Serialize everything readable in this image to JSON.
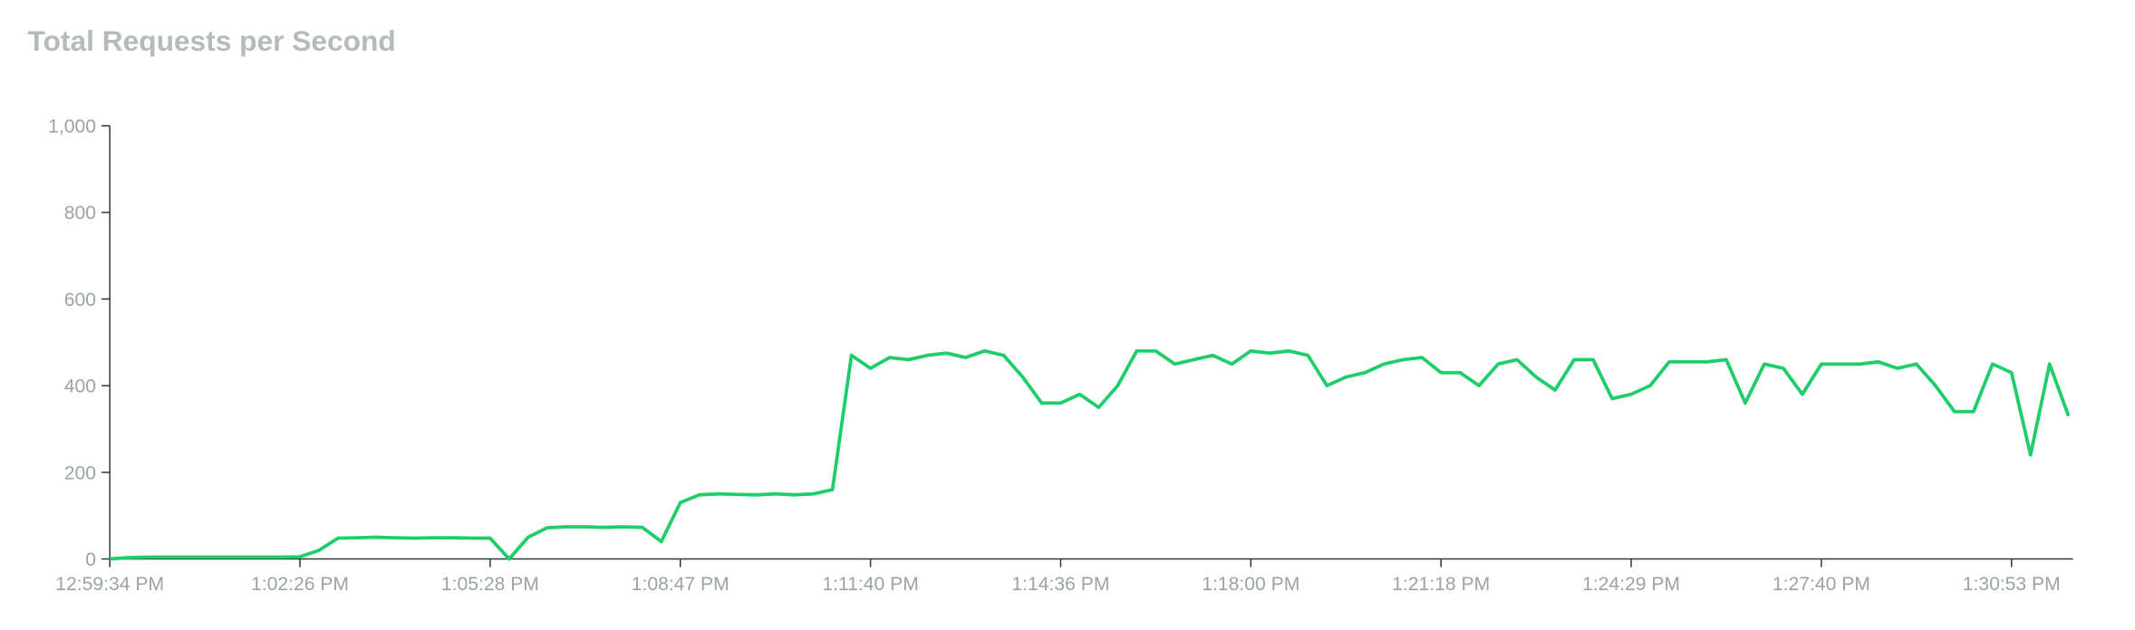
{
  "chart_data": {
    "type": "line",
    "title": "Total Requests per Second",
    "categories": [
      "12:59:34 PM",
      null,
      null,
      null,
      null,
      null,
      null,
      null,
      null,
      null,
      "1:02:26 PM",
      null,
      null,
      null,
      null,
      null,
      null,
      null,
      null,
      null,
      "1:05:28 PM",
      null,
      null,
      null,
      null,
      null,
      null,
      null,
      null,
      null,
      "1:08:47 PM",
      null,
      null,
      null,
      null,
      null,
      null,
      null,
      null,
      null,
      "1:11:40 PM",
      null,
      null,
      null,
      null,
      null,
      null,
      null,
      null,
      null,
      "1:14:36 PM",
      null,
      null,
      null,
      null,
      null,
      null,
      null,
      null,
      null,
      "1:18:00 PM",
      null,
      null,
      null,
      null,
      null,
      null,
      null,
      null,
      null,
      "1:21:18 PM",
      null,
      null,
      null,
      null,
      null,
      null,
      null,
      null,
      null,
      "1:24:29 PM",
      null,
      null,
      null,
      null,
      null,
      null,
      null,
      null,
      null,
      "1:27:40 PM",
      null,
      null,
      null,
      null,
      null,
      null,
      null,
      null,
      null,
      "1:30:53 PM",
      null,
      null,
      null
    ],
    "series": [
      {
        "color": "#1fce6a",
        "values": [
          0,
          3,
          4,
          4,
          4,
          4,
          4,
          4,
          4,
          4,
          5,
          20,
          48,
          49,
          50,
          49,
          48,
          49,
          49,
          48,
          48,
          0,
          50,
          72,
          74,
          74,
          73,
          74,
          73,
          40,
          130,
          148,
          150,
          149,
          148,
          150,
          148,
          150,
          160,
          470,
          440,
          465,
          460,
          470,
          475,
          465,
          480,
          470,
          420,
          360,
          360,
          380,
          350,
          400,
          480,
          480,
          450,
          460,
          470,
          450,
          480,
          475,
          480,
          470,
          400,
          420,
          430,
          450,
          460,
          465,
          430,
          430,
          400,
          450,
          460,
          420,
          390,
          460,
          460,
          370,
          380,
          400,
          455,
          455,
          455,
          460,
          360,
          450,
          440,
          380,
          450,
          450,
          450,
          455,
          440,
          450,
          400,
          340,
          340,
          450,
          430,
          240,
          450,
          330
        ]
      }
    ],
    "ylim": [
      0,
      1000
    ],
    "yticks": [
      0,
      200,
      400,
      600,
      800,
      {
        "value": 1000,
        "label": "1,000"
      }
    ],
    "grid": false
  }
}
